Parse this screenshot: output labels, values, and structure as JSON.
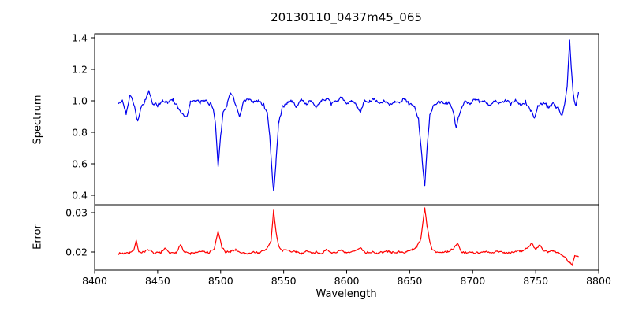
{
  "figure": {
    "title": "20130110_0437m45_065"
  },
  "chart_data": [
    {
      "type": "line",
      "panel": "spectrum",
      "ylabel": "Spectrum",
      "line_color": "#0000ee",
      "xlim": [
        8400,
        8800
      ],
      "ylim": [
        0.34,
        1.425
      ],
      "yticks": [
        [
          0.4,
          "0.4"
        ],
        [
          0.6,
          "0.6"
        ],
        [
          0.8,
          "0.8"
        ],
        [
          1.0,
          "1.0"
        ],
        [
          1.2,
          "1.2"
        ],
        [
          1.4,
          "1.4"
        ]
      ],
      "grid": false,
      "noise": {
        "amplitude": 0.014,
        "seed": 42,
        "sample_step": 0.8
      },
      "series": [
        {
          "name": "spectrum",
          "points": [
            [
              8419,
              0.98
            ],
            [
              8422,
              1.0
            ],
            [
              8425,
              0.92
            ],
            [
              8428,
              1.04
            ],
            [
              8431,
              0.99
            ],
            [
              8434,
              0.87
            ],
            [
              8437,
              0.96
            ],
            [
              8440,
              1.0
            ],
            [
              8443,
              1.06
            ],
            [
              8446,
              0.98
            ],
            [
              8450,
              0.97
            ],
            [
              8454,
              1.0
            ],
            [
              8458,
              0.99
            ],
            [
              8462,
              1.01
            ],
            [
              8466,
              0.96
            ],
            [
              8469,
              0.92
            ],
            [
              8473,
              0.9
            ],
            [
              8476,
              0.99
            ],
            [
              8480,
              1.0
            ],
            [
              8484,
              0.99
            ],
            [
              8488,
              1.0
            ],
            [
              8492,
              0.98
            ],
            [
              8494,
              0.96
            ],
            [
              8496,
              0.84
            ],
            [
              8498,
              0.585
            ],
            [
              8500,
              0.78
            ],
            [
              8502,
              0.93
            ],
            [
              8505,
              0.97
            ],
            [
              8508,
              1.06
            ],
            [
              8511,
              1.0
            ],
            [
              8513,
              0.95
            ],
            [
              8515,
              0.89
            ],
            [
              8518,
              0.99
            ],
            [
              8522,
              1.01
            ],
            [
              8526,
              0.99
            ],
            [
              8530,
              1.0
            ],
            [
              8534,
              0.98
            ],
            [
              8537,
              0.92
            ],
            [
              8539,
              0.78
            ],
            [
              8541,
              0.52
            ],
            [
              8542,
              0.42
            ],
            [
              8544,
              0.62
            ],
            [
              8546,
              0.86
            ],
            [
              8549,
              0.96
            ],
            [
              8553,
              0.99
            ],
            [
              8557,
              1.0
            ],
            [
              8560,
              0.96
            ],
            [
              8564,
              1.01
            ],
            [
              8568,
              0.98
            ],
            [
              8572,
              1.0
            ],
            [
              8576,
              0.96
            ],
            [
              8580,
              1.0
            ],
            [
              8584,
              1.01
            ],
            [
              8588,
              0.98
            ],
            [
              8592,
              1.0
            ],
            [
              8596,
              1.02
            ],
            [
              8600,
              0.98
            ],
            [
              8604,
              1.0
            ],
            [
              8608,
              0.97
            ],
            [
              8611,
              0.93
            ],
            [
              8614,
              1.0
            ],
            [
              8618,
              0.99
            ],
            [
              8622,
              1.01
            ],
            [
              8626,
              0.98
            ],
            [
              8630,
              1.0
            ],
            [
              8634,
              0.97
            ],
            [
              8638,
              1.0
            ],
            [
              8642,
              0.99
            ],
            [
              8646,
              1.01
            ],
            [
              8650,
              0.98
            ],
            [
              8654,
              0.96
            ],
            [
              8657,
              0.88
            ],
            [
              8660,
              0.62
            ],
            [
              8662,
              0.46
            ],
            [
              8664,
              0.72
            ],
            [
              8666,
              0.91
            ],
            [
              8669,
              0.97
            ],
            [
              8673,
              1.0
            ],
            [
              8677,
              0.98
            ],
            [
              8681,
              0.99
            ],
            [
              8684,
              0.95
            ],
            [
              8687,
              0.83
            ],
            [
              8690,
              0.93
            ],
            [
              8694,
              1.0
            ],
            [
              8698,
              0.98
            ],
            [
              8702,
              1.01
            ],
            [
              8706,
              0.99
            ],
            [
              8710,
              1.0
            ],
            [
              8714,
              0.97
            ],
            [
              8718,
              1.0
            ],
            [
              8722,
              0.98
            ],
            [
              8726,
              1.01
            ],
            [
              8730,
              0.98
            ],
            [
              8734,
              1.0
            ],
            [
              8738,
              0.97
            ],
            [
              8742,
              0.99
            ],
            [
              8746,
              0.94
            ],
            [
              8749,
              0.89
            ],
            [
              8752,
              0.97
            ],
            [
              8756,
              0.99
            ],
            [
              8760,
              0.96
            ],
            [
              8764,
              0.98
            ],
            [
              8768,
              0.95
            ],
            [
              8771,
              0.9
            ],
            [
              8773,
              0.97
            ],
            [
              8775,
              1.1
            ],
            [
              8777,
              1.385
            ],
            [
              8779,
              1.12
            ],
            [
              8780,
              1.03
            ],
            [
              8782,
              0.96
            ],
            [
              8784,
              1.06
            ]
          ]
        }
      ]
    },
    {
      "type": "line",
      "panel": "error",
      "ylabel": "Error",
      "xlabel": "Wavelength",
      "line_color": "#ff0000",
      "xlim": [
        8400,
        8800
      ],
      "ylim": [
        0.0154,
        0.032
      ],
      "xticks": [
        8400,
        8450,
        8500,
        8550,
        8600,
        8650,
        8700,
        8750,
        8800
      ],
      "yticks": [
        [
          0.02,
          "0.02"
        ],
        [
          0.03,
          "0.03"
        ]
      ],
      "grid": false,
      "noise": {
        "amplitude": 0.00035,
        "seed": 7,
        "sample_step": 0.8
      },
      "series": [
        {
          "name": "error",
          "points": [
            [
              8419,
              0.0196
            ],
            [
              8424,
              0.0197
            ],
            [
              8428,
              0.0199
            ],
            [
              8431,
              0.0202
            ],
            [
              8433,
              0.0232
            ],
            [
              8435,
              0.0199
            ],
            [
              8439,
              0.0201
            ],
            [
              8443,
              0.0205
            ],
            [
              8447,
              0.0196
            ],
            [
              8452,
              0.0199
            ],
            [
              8456,
              0.0208
            ],
            [
              8460,
              0.0196
            ],
            [
              8465,
              0.0198
            ],
            [
              8468,
              0.0221
            ],
            [
              8471,
              0.02
            ],
            [
              8476,
              0.0196
            ],
            [
              8481,
              0.0199
            ],
            [
              8486,
              0.0201
            ],
            [
              8491,
              0.0198
            ],
            [
              8495,
              0.0208
            ],
            [
              8498,
              0.0253
            ],
            [
              8501,
              0.0212
            ],
            [
              8504,
              0.0198
            ],
            [
              8508,
              0.0202
            ],
            [
              8512,
              0.0206
            ],
            [
              8516,
              0.0198
            ],
            [
              8521,
              0.0196
            ],
            [
              8526,
              0.02
            ],
            [
              8530,
              0.0198
            ],
            [
              8534,
              0.0202
            ],
            [
              8537,
              0.021
            ],
            [
              8540,
              0.0228
            ],
            [
              8542,
              0.0305
            ],
            [
              8544,
              0.025
            ],
            [
              8546,
              0.0215
            ],
            [
              8549,
              0.0203
            ],
            [
              8552,
              0.0207
            ],
            [
              8556,
              0.0199
            ],
            [
              8560,
              0.0201
            ],
            [
              8564,
              0.0196
            ],
            [
              8568,
              0.0203
            ],
            [
              8572,
              0.0198
            ],
            [
              8576,
              0.02
            ],
            [
              8580,
              0.0197
            ],
            [
              8584,
              0.0204
            ],
            [
              8588,
              0.0198
            ],
            [
              8592,
              0.02
            ],
            [
              8596,
              0.0203
            ],
            [
              8600,
              0.0197
            ],
            [
              8604,
              0.02
            ],
            [
              8608,
              0.0205
            ],
            [
              8611,
              0.0211
            ],
            [
              8615,
              0.0198
            ],
            [
              8620,
              0.02
            ],
            [
              8624,
              0.0197
            ],
            [
              8628,
              0.0199
            ],
            [
              8632,
              0.0202
            ],
            [
              8636,
              0.0198
            ],
            [
              8640,
              0.02
            ],
            [
              8644,
              0.0198
            ],
            [
              8648,
              0.0202
            ],
            [
              8652,
              0.0205
            ],
            [
              8656,
              0.0215
            ],
            [
              8659,
              0.0235
            ],
            [
              8662,
              0.0313
            ],
            [
              8664,
              0.0262
            ],
            [
              8666,
              0.0225
            ],
            [
              8668,
              0.0207
            ],
            [
              8672,
              0.02
            ],
            [
              8676,
              0.0198
            ],
            [
              8680,
              0.02
            ],
            [
              8684,
              0.0206
            ],
            [
              8688,
              0.0222
            ],
            [
              8691,
              0.0201
            ],
            [
              8695,
              0.0198
            ],
            [
              8700,
              0.02
            ],
            [
              8705,
              0.0197
            ],
            [
              8710,
              0.02
            ],
            [
              8715,
              0.0198
            ],
            [
              8720,
              0.0201
            ],
            [
              8725,
              0.0199
            ],
            [
              8730,
              0.0198
            ],
            [
              8735,
              0.0201
            ],
            [
              8740,
              0.0204
            ],
            [
              8744,
              0.0211
            ],
            [
              8747,
              0.0223
            ],
            [
              8750,
              0.0206
            ],
            [
              8753,
              0.0218
            ],
            [
              8756,
              0.0203
            ],
            [
              8760,
              0.02
            ],
            [
              8764,
              0.0203
            ],
            [
              8768,
              0.0198
            ],
            [
              8771,
              0.0192
            ],
            [
              8774,
              0.0186
            ],
            [
              8777,
              0.0172
            ],
            [
              8779,
              0.0169
            ],
            [
              8781,
              0.0191
            ],
            [
              8784,
              0.0188
            ]
          ]
        }
      ]
    }
  ]
}
